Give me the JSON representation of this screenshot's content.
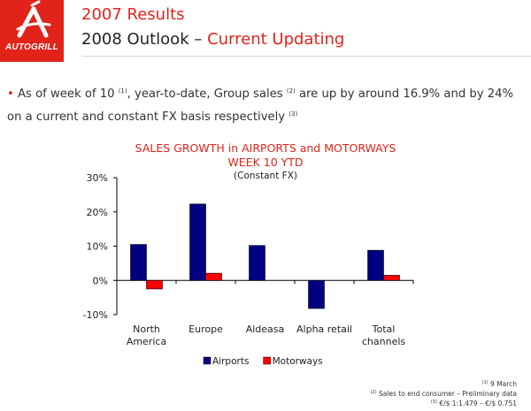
{
  "logo": {
    "text": "AUTOGRILL",
    "color": "#e2231a"
  },
  "header": {
    "title_line1": "2007 Results",
    "title_line2_prefix": "2008 Outlook – ",
    "title_line2_accent": "Current Updating"
  },
  "bullet": {
    "dot": "•",
    "t1": "As of week of 10 ",
    "s1": "(1)",
    "t2": ", year-to-date, Group sales ",
    "s2": "(2)",
    "t3": " are up by around 16.9% and by 24% on a current and constant FX basis respectively ",
    "s3": "(3)"
  },
  "chart_data": {
    "type": "bar",
    "title": "SALES GROWTH in AIRPORTS and MOTORWAYS",
    "subtitle": "WEEK 10 YTD",
    "note": "(Constant FX)",
    "categories": [
      [
        "North",
        "America"
      ],
      [
        "Europe"
      ],
      [
        "Aldeasa"
      ],
      [
        "Alpha retail"
      ],
      [
        "Total",
        "channels"
      ]
    ],
    "series": [
      {
        "name": "Airports",
        "color": "#000080",
        "values": [
          10.5,
          22.3,
          10.2,
          -8.2,
          8.8
        ]
      },
      {
        "name": "Motorways",
        "color": "#ff0000",
        "values": [
          -2.5,
          2.1,
          null,
          null,
          1.5
        ]
      }
    ],
    "ylim": [
      -10,
      30
    ],
    "yticks": [
      30,
      20,
      10,
      0,
      -10
    ],
    "ytick_labels": [
      "30%",
      "20%",
      "10%",
      "0%",
      "-10%"
    ],
    "legend_position": "bottom",
    "grid": false
  },
  "footnotes": [
    {
      "sup": "(1)",
      "text": " 9 March"
    },
    {
      "sup": "(2)",
      "text": " Sales to end consumer – Preliminary data"
    },
    {
      "sup": "(3)",
      "text": " €/$ 1:1.479 – €/$ 0.751"
    }
  ]
}
